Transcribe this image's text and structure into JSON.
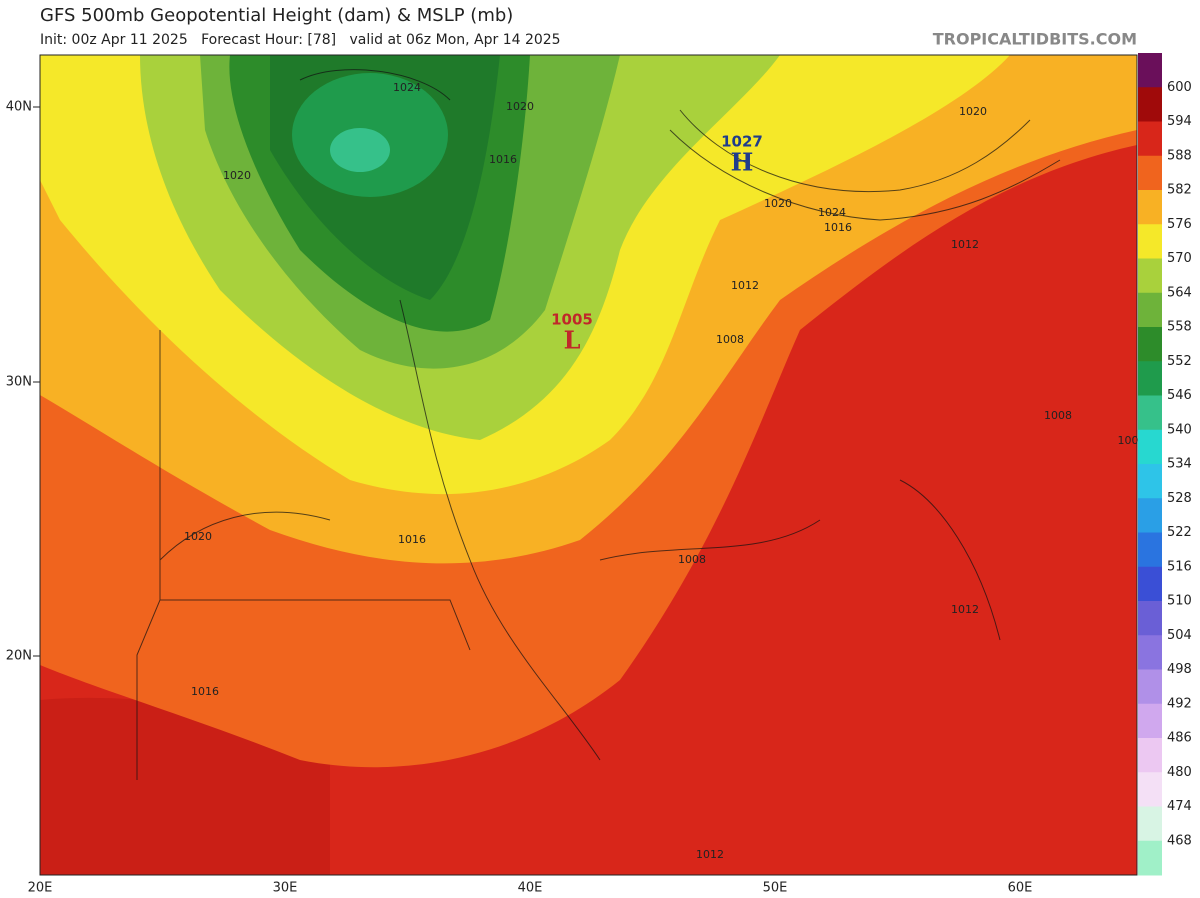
{
  "header": {
    "title": "GFS 500mb Geopotential Height (dam) & MSLP (mb)",
    "subtitle": "Init: 00z Apr 11 2025   Forecast Hour: [78]   valid at 06z Mon, Apr 14 2025",
    "site": "TROPICALTIDBITS.COM"
  },
  "axes": {
    "lat_labels": [
      "40N",
      "30N",
      "20N"
    ],
    "lon_labels": [
      "20E",
      "30E",
      "40E",
      "50E",
      "60E"
    ]
  },
  "colorbar": {
    "labels": [
      "600",
      "594",
      "588",
      "582",
      "576",
      "570",
      "564",
      "558",
      "552",
      "546",
      "540",
      "534",
      "528",
      "522",
      "516",
      "510",
      "504",
      "498",
      "492",
      "486",
      "480",
      "474",
      "468"
    ],
    "colors": [
      "#6a0f5a",
      "#a00a0a",
      "#d8261a",
      "#f0641e",
      "#f8b124",
      "#f5e829",
      "#a9d13c",
      "#6eb33a",
      "#2d8c2a",
      "#1f9b4c",
      "#36c18a",
      "#27d8d0",
      "#2ec4e8",
      "#2a9fe6",
      "#2a74e0",
      "#3a4fd6",
      "#6a5fd6",
      "#8a74e0",
      "#b090e8",
      "#d0a8ee",
      "#ecc8f2",
      "#f4e0f6",
      "#d8f4e4",
      "#a0f0c8"
    ]
  },
  "contour_labels": [
    "1024",
    "1020",
    "1016",
    "1020",
    "1020",
    "1024",
    "1016",
    "1020",
    "1012",
    "1012",
    "1008",
    "1008",
    "100",
    "1020",
    "1016",
    "1008",
    "1012",
    "1016",
    "1012"
  ],
  "pressure_centers": [
    {
      "value": "1027",
      "symbol": "H",
      "color": "#1f3c8c"
    },
    {
      "value": "1005",
      "symbol": "L",
      "color": "#c0282a"
    }
  ]
}
